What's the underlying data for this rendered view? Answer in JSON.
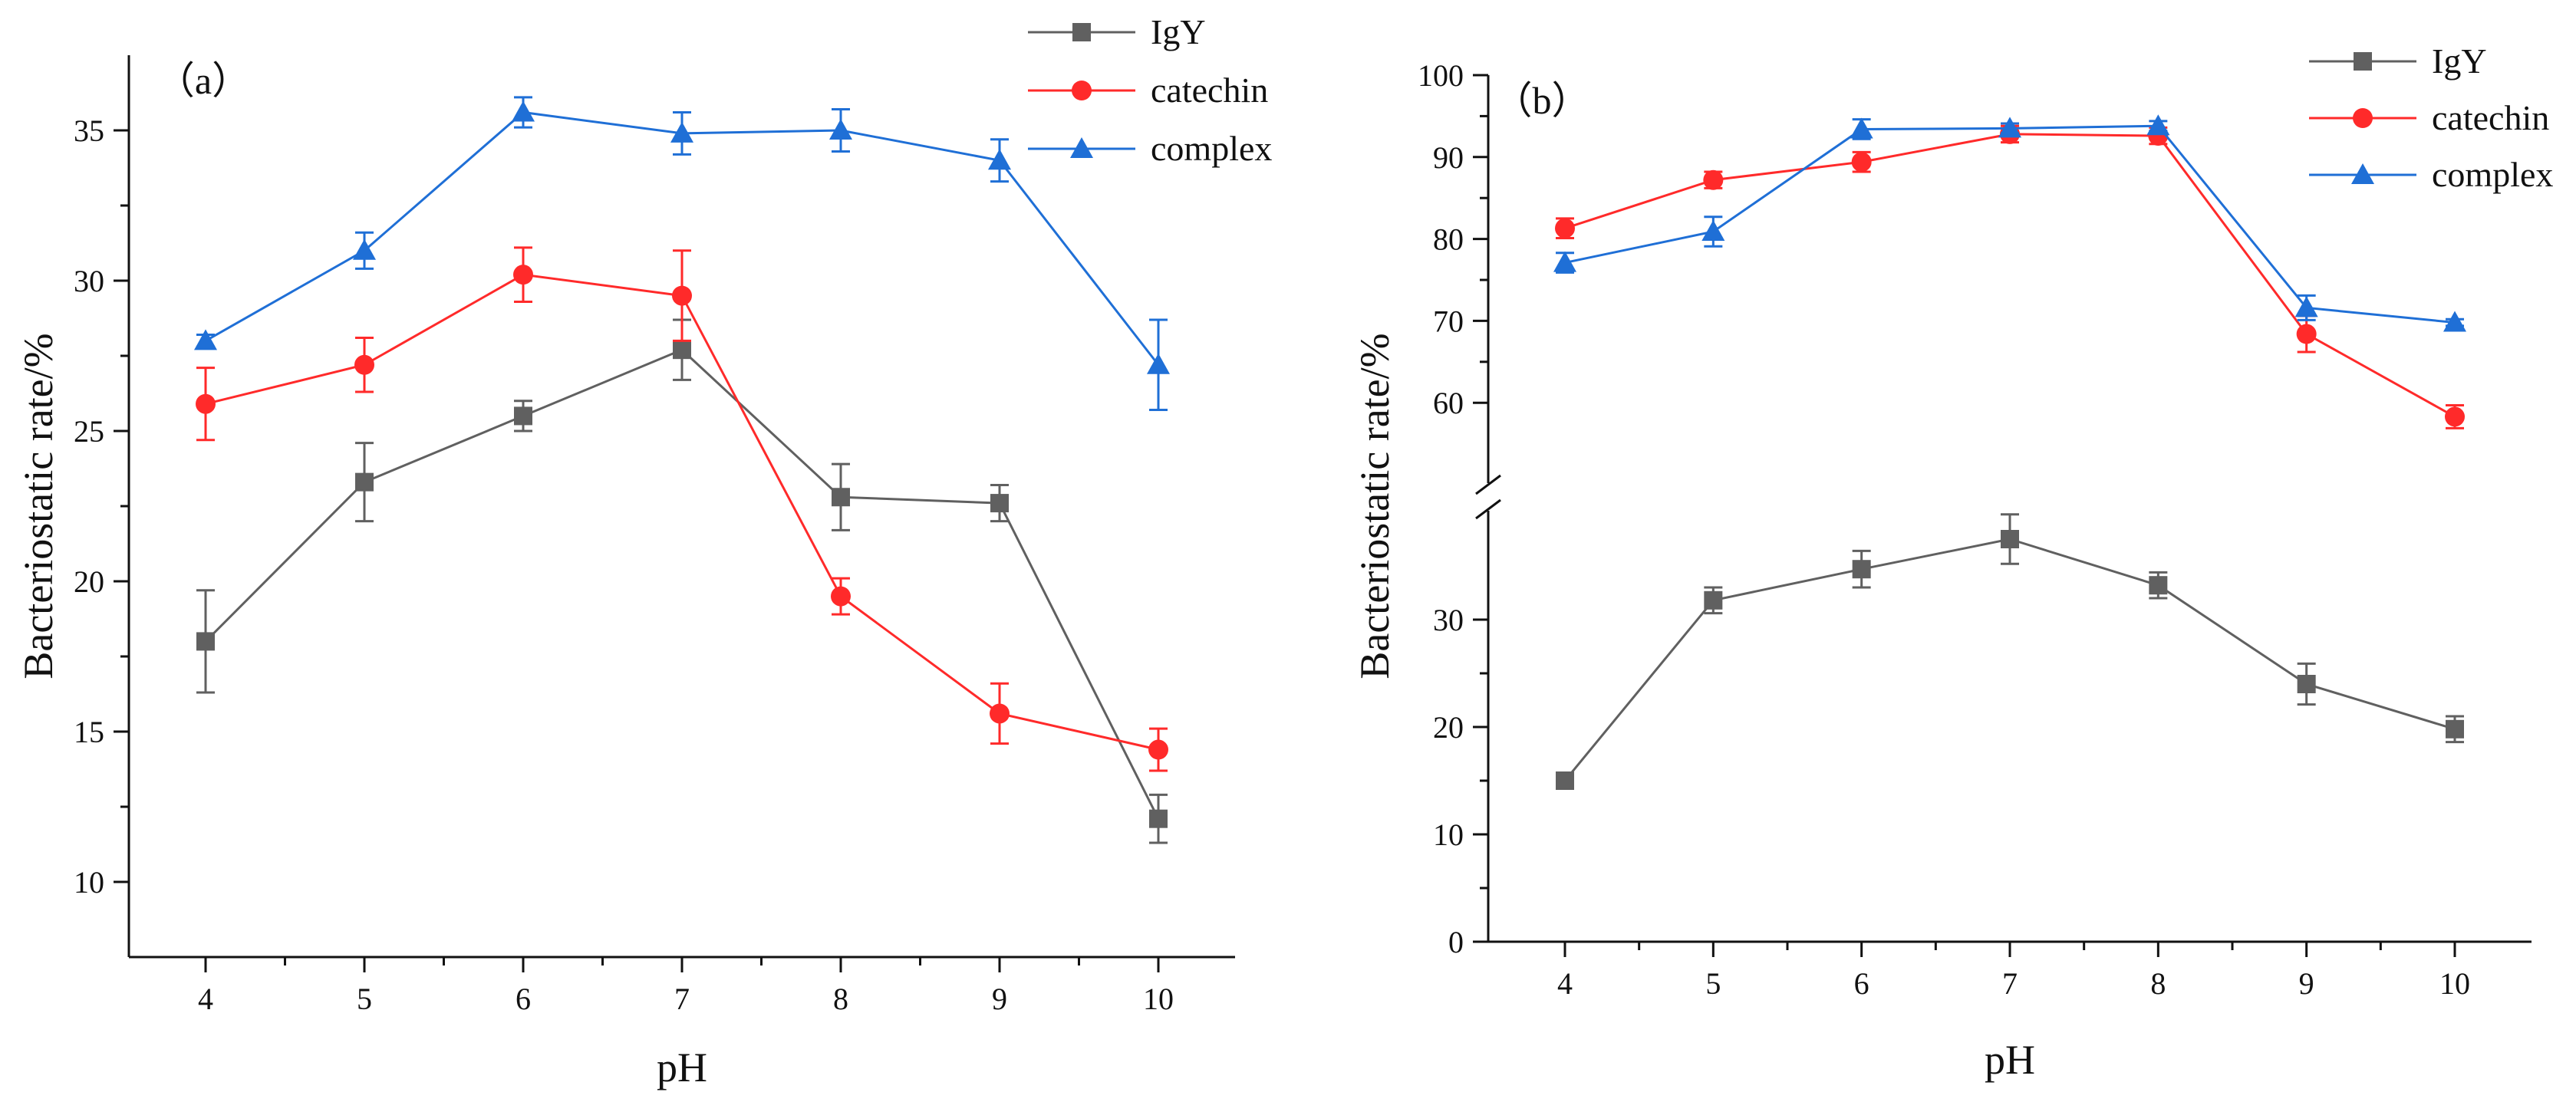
{
  "chart_data": [
    {
      "type": "line",
      "panel_label": "（a）",
      "xlabel": "pH",
      "ylabel": "Bacteriostatic rate/%",
      "x": [
        4,
        5,
        6,
        7,
        8,
        9,
        10
      ],
      "xticks": [
        "4",
        "5",
        "6",
        "7",
        "8",
        "9",
        "10"
      ],
      "yticks": [
        10,
        15,
        20,
        25,
        30,
        35
      ],
      "ylim": [
        7.5,
        37.5
      ],
      "grid": false,
      "legend_position": "top-right",
      "series": [
        {
          "name": "IgY",
          "color": "#606060",
          "marker": "square",
          "values": [
            18.0,
            23.3,
            25.5,
            27.7,
            22.8,
            22.6,
            12.1
          ],
          "errors": [
            1.7,
            1.3,
            0.5,
            1.0,
            1.1,
            0.6,
            0.8
          ]
        },
        {
          "name": "catechin",
          "color": "#ff2a2a",
          "marker": "circle",
          "values": [
            25.9,
            27.2,
            30.2,
            29.5,
            19.5,
            15.6,
            14.4
          ],
          "errors": [
            1.2,
            0.9,
            0.9,
            1.5,
            0.6,
            1.0,
            0.7
          ]
        },
        {
          "name": "complex",
          "color": "#1f6fd6",
          "marker": "triangle",
          "values": [
            28.0,
            31.0,
            35.6,
            34.9,
            35.0,
            34.0,
            27.2
          ],
          "errors": [
            0.2,
            0.6,
            0.5,
            0.7,
            0.7,
            0.7,
            1.5
          ]
        }
      ]
    },
    {
      "type": "line",
      "panel_label": "（b）",
      "xlabel": "pH",
      "ylabel": "Bacteriostatic rate/%",
      "x": [
        4,
        5,
        6,
        7,
        8,
        9,
        10
      ],
      "xticks": [
        "4",
        "5",
        "6",
        "7",
        "8",
        "9",
        "10"
      ],
      "axis_break": {
        "lower_ylim": [
          0,
          41
        ],
        "upper_ylim": [
          53,
          100
        ]
      },
      "yticks_lower": [
        0,
        10,
        20,
        30
      ],
      "yticks_upper": [
        60,
        70,
        80,
        90,
        100
      ],
      "grid": false,
      "legend_position": "top-right",
      "series": [
        {
          "name": "IgY",
          "color": "#606060",
          "marker": "square",
          "values": [
            15.0,
            31.8,
            34.7,
            37.5,
            33.2,
            24.0,
            19.8
          ],
          "errors": [
            0.5,
            1.2,
            1.7,
            2.3,
            1.2,
            1.9,
            1.2
          ]
        },
        {
          "name": "catechin",
          "color": "#ff2a2a",
          "marker": "circle",
          "values": [
            81.3,
            87.2,
            89.4,
            92.8,
            92.6,
            68.4,
            58.3
          ],
          "errors": [
            1.2,
            1.0,
            1.2,
            1.0,
            1.0,
            2.2,
            1.4
          ]
        },
        {
          "name": "complex",
          "color": "#1f6fd6",
          "marker": "triangle",
          "values": [
            77.1,
            80.9,
            93.4,
            93.5,
            93.8,
            71.6,
            69.8
          ],
          "errors": [
            1.2,
            1.8,
            1.2,
            0.6,
            0.6,
            1.5,
            0.4
          ]
        }
      ]
    }
  ]
}
